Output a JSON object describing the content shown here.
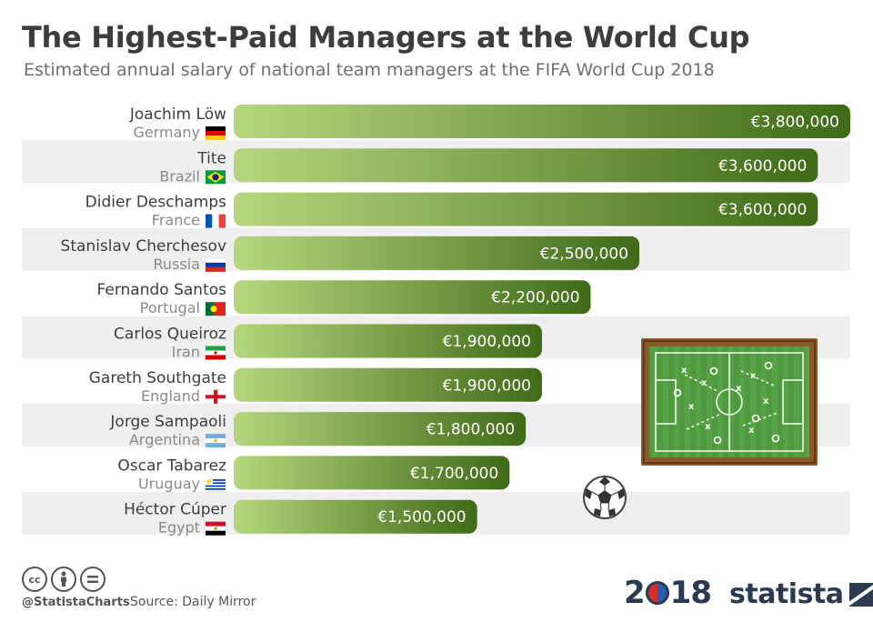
{
  "header": {
    "title": "The Highest-Paid Managers at the World Cup",
    "subtitle": "Estimated annual salary of national team managers at the FIFA World Cup 2018"
  },
  "chart_data": {
    "type": "bar",
    "orientation": "horizontal",
    "title": "The Highest-Paid Managers at the World Cup",
    "subtitle": "Estimated annual salary of national team managers at the FIFA World Cup 2018",
    "categories": [
      "Joachim Löw",
      "Tite",
      "Didier Deschamps",
      "Stanislav Cherchesov",
      "Fernando Santos",
      "Carlos Queiroz",
      "Gareth Southgate",
      "Jorge Sampaoli",
      "Oscar Tabarez",
      "Héctor Cúper"
    ],
    "countries": [
      "Germany",
      "Brazil",
      "France",
      "Russia",
      "Portugal",
      "Iran",
      "England",
      "Argentina",
      "Uruguay",
      "Egypt"
    ],
    "values": [
      3800000,
      3600000,
      3600000,
      2500000,
      2200000,
      1900000,
      1900000,
      1800000,
      1700000,
      1500000
    ],
    "value_labels": [
      "€3,800,000",
      "€3,600,000",
      "€3,600,000",
      "€2,500,000",
      "€2,200,000",
      "€1,900,000",
      "€1,900,000",
      "€1,800,000",
      "€1,700,000",
      "€1,500,000"
    ],
    "xlim": [
      0,
      3800000
    ],
    "grid": false,
    "legend": "none",
    "colors": {
      "bar_start": "#b5d77c",
      "bar_end": "#3f6a17",
      "row_band": "#efefef"
    }
  },
  "flags": [
    "germany-flag-icon",
    "brazil-flag-icon",
    "france-flag-icon",
    "russia-flag-icon",
    "portugal-flag-icon",
    "iran-flag-icon",
    "england-flag-icon",
    "argentina-flag-icon",
    "uruguay-flag-icon",
    "egypt-flag-icon"
  ],
  "decorations": [
    "tactics-board-icon",
    "football-icon"
  ],
  "footer": {
    "license_icons": [
      "cc-icon",
      "by-icon",
      "nd-icon"
    ],
    "handle": "@StatistaCharts",
    "source": "Source: Daily Mirror",
    "event_logo_text": "2018",
    "brand": "statista"
  }
}
